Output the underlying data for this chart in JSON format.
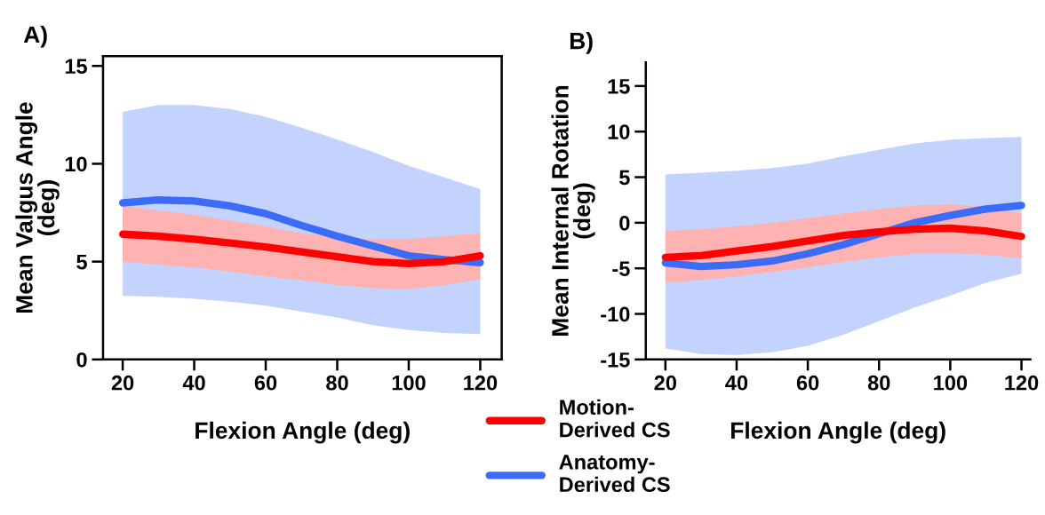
{
  "chart_data": [
    {
      "type": "line",
      "title": "A)",
      "xlabel": "Flexion Angle (deg)",
      "ylabel": "Mean Valgus Angle\n(deg)",
      "x": [
        20,
        30,
        40,
        50,
        60,
        70,
        80,
        90,
        100,
        110,
        120
      ],
      "xlim": [
        14.5,
        126
      ],
      "ylim": [
        0,
        15.5
      ],
      "xticks": [
        20,
        40,
        60,
        80,
        100,
        120
      ],
      "yticks": [
        0,
        5,
        10,
        15
      ],
      "grid": false,
      "legend": "bottom",
      "marker": "none",
      "line_style": "solid",
      "series": [
        {
          "name": "Motion-\nDerived CS",
          "color": "#ff0000",
          "values": [
            6.4,
            6.3,
            6.15,
            5.95,
            5.75,
            5.5,
            5.25,
            5.0,
            4.9,
            5.0,
            5.3
          ],
          "lower": [
            5.0,
            4.85,
            4.7,
            4.5,
            4.25,
            4.05,
            3.8,
            3.65,
            3.6,
            3.8,
            4.1
          ],
          "upper": [
            7.85,
            7.6,
            7.4,
            7.1,
            6.8,
            6.45,
            6.25,
            6.15,
            6.15,
            6.3,
            6.45
          ]
        },
        {
          "name": "Anatomy-\nDerived CS",
          "color": "#3b6cf8",
          "values": [
            8.0,
            8.15,
            8.1,
            7.85,
            7.45,
            6.85,
            6.3,
            5.8,
            5.3,
            5.1,
            4.95
          ],
          "lower": [
            3.25,
            3.2,
            3.1,
            2.95,
            2.75,
            2.45,
            2.15,
            1.75,
            1.5,
            1.35,
            1.3
          ],
          "upper": [
            12.65,
            13.0,
            13.0,
            12.8,
            12.4,
            11.85,
            11.25,
            10.6,
            9.9,
            9.3,
            8.7
          ]
        }
      ]
    },
    {
      "type": "line",
      "title": "B)",
      "xlabel": "Flexion Angle (deg)",
      "ylabel": "Mean Internal Rotation\n(deg)",
      "x": [
        20,
        30,
        40,
        50,
        60,
        70,
        80,
        90,
        100,
        110,
        120
      ],
      "xlim": [
        14.5,
        122.5
      ],
      "ylim": [
        -15,
        17.6
      ],
      "xticks": [
        20,
        40,
        60,
        80,
        100,
        120
      ],
      "yticks": [
        -15,
        -10,
        -5,
        0,
        5,
        10,
        15
      ],
      "grid": false,
      "marker": "none",
      "line_style": "solid",
      "series": [
        {
          "color": "#ff0000",
          "values": [
            -3.8,
            -3.6,
            -3.1,
            -2.6,
            -2.0,
            -1.4,
            -1.0,
            -0.7,
            -0.6,
            -0.9,
            -1.5
          ],
          "lower": [
            -6.6,
            -6.3,
            -5.9,
            -5.4,
            -4.9,
            -4.3,
            -3.8,
            -3.4,
            -3.4,
            -3.5,
            -3.9
          ],
          "upper": [
            -0.9,
            -0.7,
            -0.4,
            0.0,
            0.5,
            1.0,
            1.5,
            1.9,
            2.0,
            1.8,
            1.0
          ]
        },
        {
          "color": "#3b6cf8",
          "values": [
            -4.4,
            -4.8,
            -4.6,
            -4.2,
            -3.4,
            -2.4,
            -1.2,
            0.0,
            0.8,
            1.5,
            1.9
          ],
          "lower": [
            -13.8,
            -14.4,
            -14.5,
            -14.2,
            -13.5,
            -12.3,
            -10.8,
            -9.3,
            -8.0,
            -6.6,
            -5.6
          ],
          "upper": [
            5.3,
            5.5,
            5.7,
            6.0,
            6.5,
            7.3,
            8.0,
            8.7,
            9.1,
            9.3,
            9.4
          ]
        }
      ]
    }
  ]
}
